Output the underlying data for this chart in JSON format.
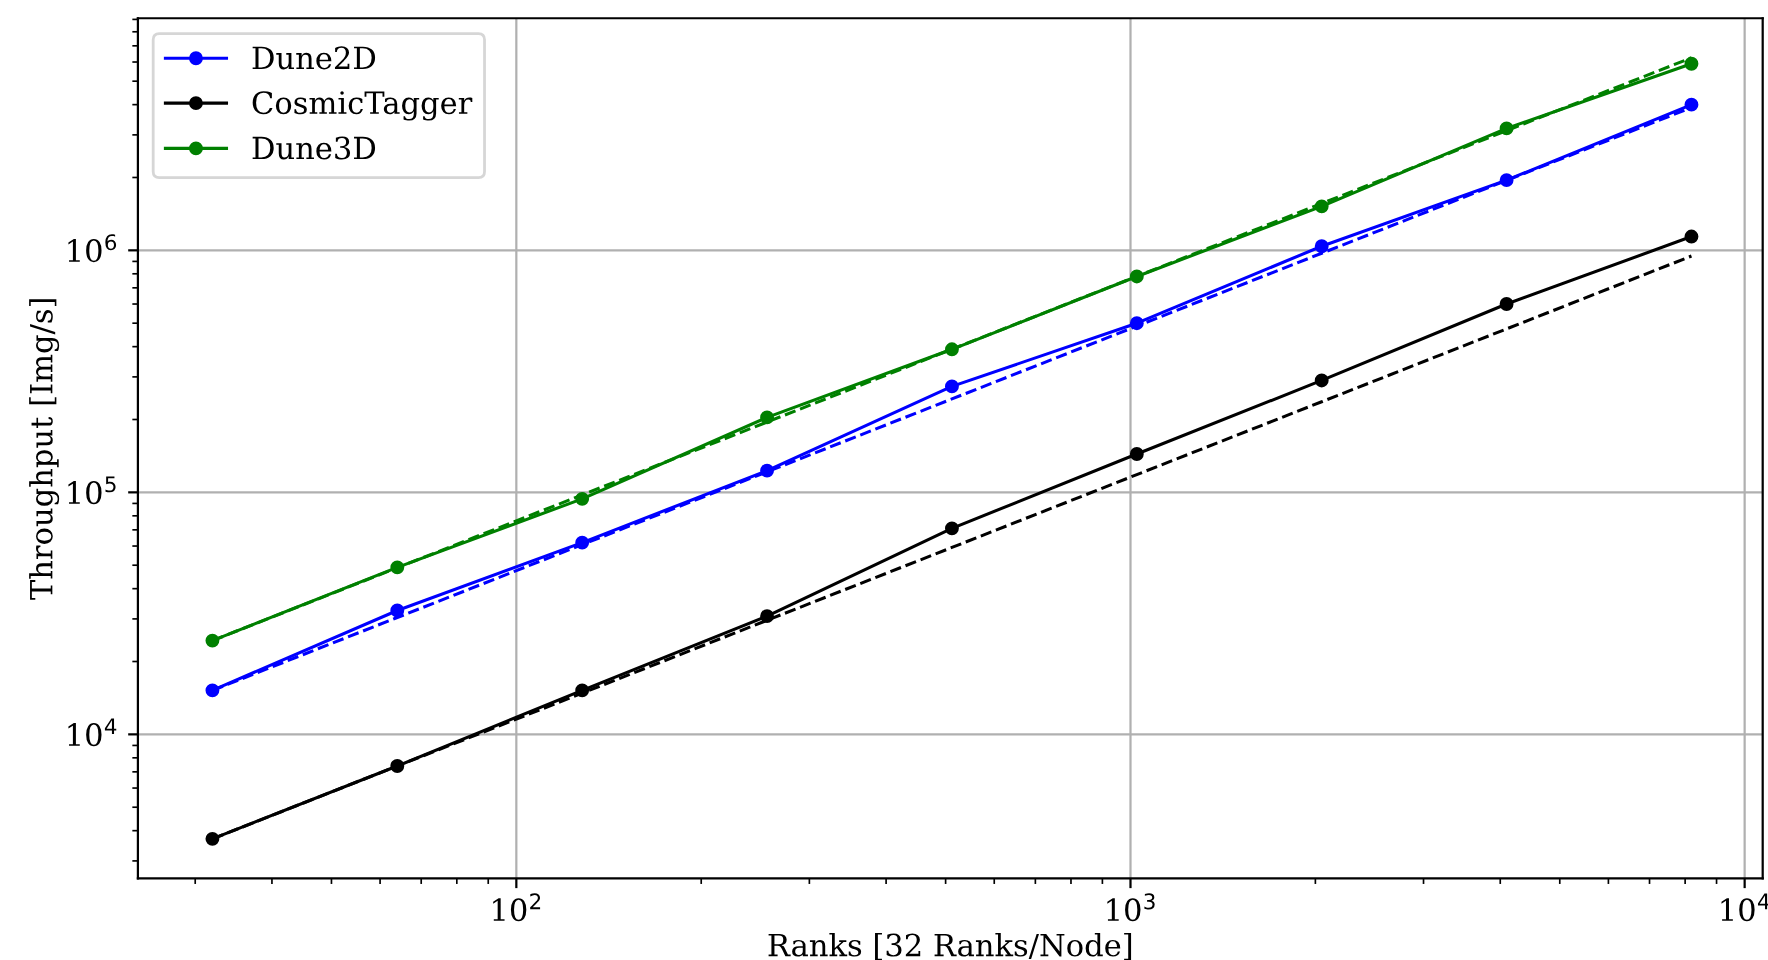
{
  "chart_data": {
    "type": "line",
    "xlabel": "Ranks [32 Ranks/Node]",
    "ylabel": "Throughput [Img/s]",
    "log": "xy",
    "grid": true,
    "legend": "top left",
    "marker": "circle",
    "x": [
      32,
      64,
      128,
      256,
      512,
      1024,
      2048,
      4096,
      8192
    ],
    "xlim": [
      24.2,
      10700
    ],
    "ylim": [
      2540,
      9100000
    ],
    "xticks": [
      {
        "value": 100,
        "label": "10$^{2}$"
      },
      {
        "value": 1000,
        "label": "10$^{3}$"
      },
      {
        "value": 10000,
        "label": "10$^{4}$"
      }
    ],
    "yticks": [
      {
        "value": 10000,
        "label": "10$^{4}$"
      },
      {
        "value": 100000,
        "label": "10$^{5}$"
      },
      {
        "value": 1000000,
        "label": "10$^{6}$"
      }
    ],
    "series": [
      {
        "name": "Dune2D",
        "color": "#0000ff",
        "values": [
          15200,
          32500,
          62000,
          123000,
          274000,
          500000,
          1040000,
          1950000,
          4000000
        ]
      },
      {
        "name": "CosmicTagger",
        "color": "#000000",
        "values": [
          3700,
          7400,
          15200,
          30800,
          71000,
          144000,
          290000,
          600000,
          1140000
        ]
      },
      {
        "name": "Dune3D",
        "color": "#008000",
        "values": [
          24400,
          49000,
          94000,
          204000,
          390000,
          780000,
          1520000,
          3190000,
          5900000
        ]
      },
      {
        "color": "#0000ff",
        "line_style": "dashed",
        "marker": "none",
        "values": [
          15200,
          30400,
          60800,
          121600,
          243200,
          486400,
          972800,
          1945600,
          3891200
        ]
      },
      {
        "color": "#000000",
        "line_style": "dashed",
        "marker": "none",
        "values": [
          3700,
          7400,
          14800,
          29600,
          59200,
          118400,
          236800,
          473600,
          947200
        ]
      },
      {
        "color": "#008000",
        "line_style": "dashed",
        "marker": "none",
        "values": [
          24400,
          48800,
          97600,
          195200,
          390400,
          780800,
          1561600,
          3123200,
          6246400
        ]
      }
    ]
  }
}
